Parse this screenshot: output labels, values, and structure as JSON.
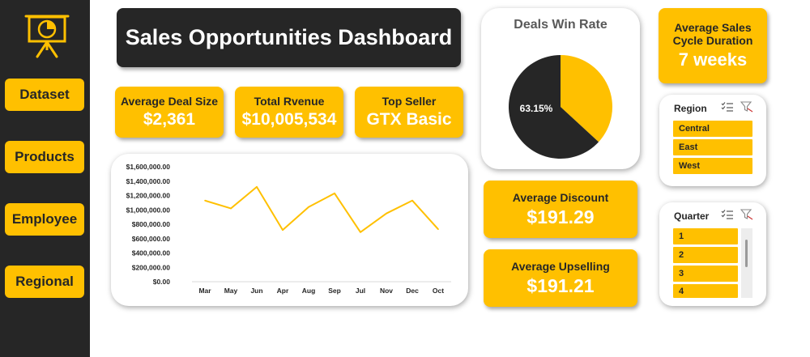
{
  "sidebar": {
    "nav": [
      {
        "label": "Dataset"
      },
      {
        "label": "Products"
      },
      {
        "label": "Employee"
      },
      {
        "label": "Regional"
      }
    ]
  },
  "header": {
    "title": "Sales Opportunities Dashboard"
  },
  "kpis": {
    "avg_deal_size": {
      "label": "Average Deal Size",
      "value": "$2,361"
    },
    "total_revenue": {
      "label": "Total Rvenue",
      "value": "$10,005,534"
    },
    "top_seller": {
      "label": "Top Seller",
      "value": "GTX Basic"
    },
    "avg_discount": {
      "label": "Average Discount",
      "value": "$191.29"
    },
    "avg_upselling": {
      "label": "Average Upselling",
      "value": "$191.21"
    },
    "avg_cycle": {
      "label_line1": "Average Sales",
      "label_line2": "Cycle Duration",
      "value": "7 weeks"
    }
  },
  "win_rate": {
    "title": "Deals Win Rate",
    "label": "63.15%",
    "won_fraction": 0.6315,
    "colors": {
      "won": "#262626",
      "lost": "#FFC000"
    }
  },
  "region_slicer": {
    "header": "Region",
    "items": [
      "Central",
      "East",
      "West"
    ]
  },
  "quarter_slicer": {
    "header": "Quarter",
    "items": [
      "1",
      "2",
      "3",
      "4"
    ]
  },
  "colors": {
    "accent": "#FFC000",
    "dark": "#262626"
  },
  "chart_data": {
    "type": "line",
    "categories": [
      "Mar",
      "May",
      "Jun",
      "Apr",
      "Aug",
      "Sep",
      "Jul",
      "Nov",
      "Dec",
      "Oct"
    ],
    "series": [
      {
        "values": [
          1130000,
          1020000,
          1320000,
          720000,
          1040000,
          1230000,
          690000,
          950000,
          1130000,
          730000
        ]
      }
    ],
    "ytick_labels": [
      "$0.00",
      "$200,000.00",
      "$400,000.00",
      "$600,000.00",
      "$800,000.00",
      "$1,000,000.00",
      "$1,200,000.00",
      "$1,400,000.00",
      "$1,600,000.00"
    ],
    "ylim": [
      0,
      1600000
    ],
    "title": "",
    "xlabel": "",
    "ylabel": "",
    "grid": false,
    "line_color": "#FFC000"
  }
}
